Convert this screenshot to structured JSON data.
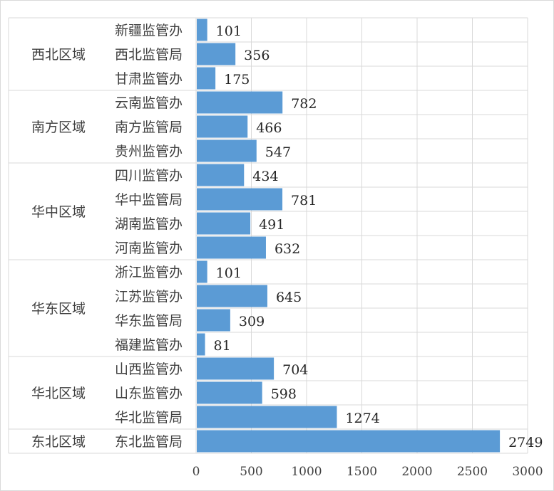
{
  "chart_data": {
    "type": "bar",
    "orientation": "horizontal",
    "title": "",
    "xlabel": "",
    "ylabel": "",
    "xlim": [
      0,
      3000
    ],
    "x_ticks": [
      0,
      500,
      1000,
      1500,
      2000,
      2500,
      3000
    ],
    "grid": true,
    "bar_color": "#5b9bd5",
    "groups": [
      {
        "name": "西北区域",
        "categories": [
          "新疆监管办",
          "西北监管局",
          "甘肃监管办"
        ],
        "values": [
          101,
          356,
          175
        ]
      },
      {
        "name": "南方区域",
        "categories": [
          "云南监管办",
          "南方监管局",
          "贵州监管办"
        ],
        "values": [
          782,
          466,
          547
        ]
      },
      {
        "name": "华中区域",
        "categories": [
          "四川监管办",
          "华中监管局",
          "湖南监管办",
          "河南监管办"
        ],
        "values": [
          434,
          781,
          491,
          632
        ]
      },
      {
        "name": "华东区域",
        "categories": [
          "浙江监管办",
          "江苏监管办",
          "华东监管局",
          "福建监管办"
        ],
        "values": [
          101,
          645,
          309,
          81
        ]
      },
      {
        "name": "华北区域",
        "categories": [
          "山西监管办",
          "山东监管办",
          "华北监管局"
        ],
        "values": [
          704,
          598,
          1274
        ]
      },
      {
        "name": "东北区域",
        "categories": [
          "东北监管局"
        ],
        "values": [
          2749
        ]
      }
    ]
  }
}
